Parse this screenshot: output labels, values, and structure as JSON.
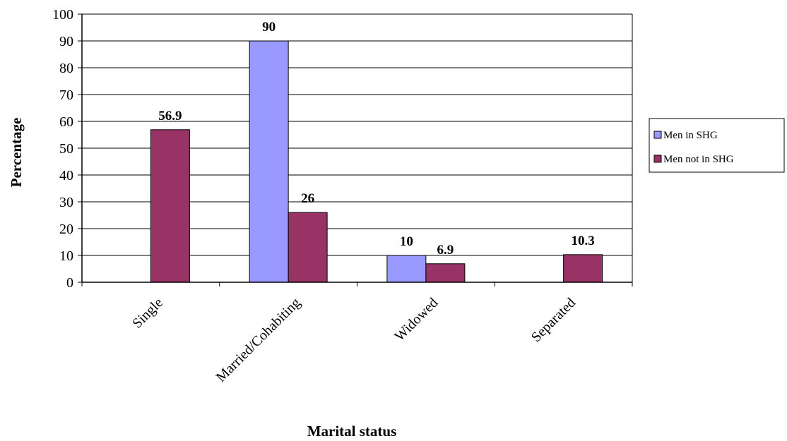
{
  "chart_data": {
    "type": "bar",
    "title": "",
    "xlabel": "Marital status",
    "ylabel": "Percentage",
    "ylim": [
      0,
      100
    ],
    "yticks": [
      0,
      10,
      20,
      30,
      40,
      50,
      60,
      70,
      80,
      90,
      100
    ],
    "grid": true,
    "legend_position": "right",
    "categories": [
      "Single",
      "Married/Cohabiting",
      "Widowed",
      "Separated"
    ],
    "series": [
      {
        "name": "Men in SHG",
        "color": "#9999ff",
        "values": [
          null,
          90,
          10,
          null
        ],
        "labels": [
          "",
          "90",
          "10",
          ""
        ]
      },
      {
        "name": "Men not in SHG",
        "color": "#993366",
        "values": [
          56.9,
          26,
          6.9,
          10.3
        ],
        "labels": [
          "56.9",
          "26",
          "6.9",
          "10.3"
        ]
      }
    ]
  }
}
